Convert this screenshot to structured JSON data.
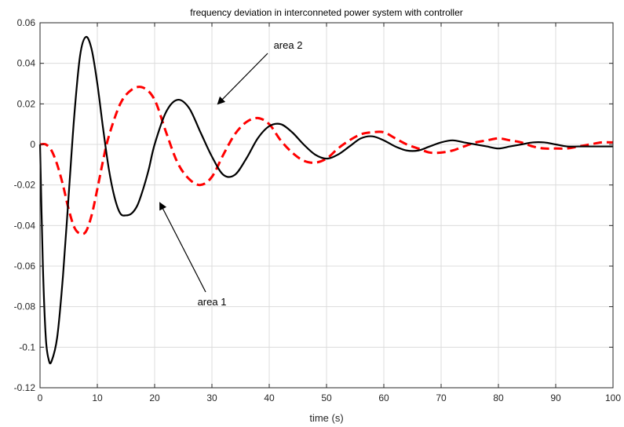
{
  "chart_data": {
    "type": "line",
    "title": "frequency deviation in interconneted power system with controller",
    "xlabel": "time (s)",
    "ylabel": "",
    "xlim": [
      0,
      100
    ],
    "ylim": [
      -0.12,
      0.06
    ],
    "xticks": [
      "0",
      "10",
      "20",
      "30",
      "40",
      "50",
      "60",
      "70",
      "80",
      "90",
      "100"
    ],
    "yticks": [
      "0.06",
      "0.04",
      "0.02",
      "0",
      "-0.02",
      "-0.04",
      "-0.06",
      "-0.08",
      "-0.1",
      "-0.12"
    ],
    "grid": true,
    "series": [
      {
        "name": "area 1",
        "style": "solid",
        "color": "#000000",
        "x": [
          0,
          0.5,
          1,
          1.5,
          2,
          3,
          4,
          5,
          6,
          7,
          8,
          9,
          10,
          11,
          12,
          13,
          14,
          15,
          16,
          17,
          18,
          19,
          20,
          22,
          24,
          26,
          28,
          30,
          32,
          34,
          36,
          38,
          40,
          42,
          44,
          46,
          48,
          50,
          52,
          54,
          56,
          58,
          60,
          62,
          64,
          66,
          68,
          70,
          72,
          74,
          76,
          78,
          80,
          82,
          84,
          86,
          88,
          90,
          92,
          94,
          96,
          98,
          100
        ],
        "y": [
          0,
          -0.06,
          -0.095,
          -0.106,
          -0.107,
          -0.095,
          -0.065,
          -0.025,
          0.015,
          0.044,
          0.053,
          0.047,
          0.03,
          0.008,
          -0.012,
          -0.026,
          -0.034,
          -0.035,
          -0.034,
          -0.03,
          -0.022,
          -0.012,
          0.0,
          0.016,
          0.022,
          0.018,
          0.006,
          -0.006,
          -0.015,
          -0.015,
          -0.007,
          0.003,
          0.009,
          0.01,
          0.006,
          0.0,
          -0.005,
          -0.007,
          -0.005,
          -0.001,
          0.003,
          0.004,
          0.002,
          -0.001,
          -0.003,
          -0.003,
          -0.001,
          0.001,
          0.002,
          0.001,
          0.0,
          -0.001,
          -0.002,
          -0.001,
          0.0,
          0.001,
          0.001,
          0.0,
          -0.001,
          -0.001,
          -0.001,
          -0.001,
          -0.001
        ]
      },
      {
        "name": "area 2",
        "style": "dashed",
        "color": "#ff0000",
        "x": [
          0,
          1,
          2,
          3,
          4,
          5,
          6,
          7,
          8,
          9,
          10,
          11,
          12,
          14,
          16,
          18,
          20,
          22,
          24,
          26,
          28,
          30,
          32,
          34,
          36,
          38,
          40,
          42,
          44,
          46,
          48,
          50,
          52,
          54,
          56,
          58,
          60,
          62,
          64,
          66,
          68,
          70,
          72,
          74,
          76,
          78,
          80,
          82,
          84,
          86,
          88,
          90,
          92,
          94,
          96,
          98,
          100
        ],
        "y": [
          0,
          0.0,
          -0.003,
          -0.01,
          -0.02,
          -0.032,
          -0.041,
          -0.044,
          -0.043,
          -0.035,
          -0.022,
          -0.008,
          0.004,
          0.02,
          0.027,
          0.028,
          0.022,
          0.006,
          -0.009,
          -0.017,
          -0.02,
          -0.016,
          -0.005,
          0.005,
          0.011,
          0.013,
          0.01,
          0.002,
          -0.004,
          -0.008,
          -0.009,
          -0.007,
          -0.002,
          0.002,
          0.005,
          0.006,
          0.006,
          0.003,
          0.0,
          -0.002,
          -0.004,
          -0.004,
          -0.003,
          -0.001,
          0.001,
          0.002,
          0.003,
          0.002,
          0.001,
          -0.001,
          -0.002,
          -0.002,
          -0.002,
          -0.001,
          0.0,
          0.001,
          0.001
        ]
      }
    ],
    "annotations": [
      {
        "text": "area 2",
        "arrow_to_series": "black"
      },
      {
        "text": "area 1",
        "arrow_to_series": "black"
      }
    ]
  }
}
